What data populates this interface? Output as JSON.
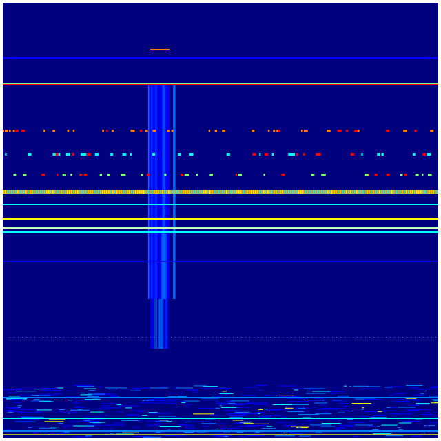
{
  "colormap": "jet",
  "colors": {
    "background": "#00007f",
    "blue": "#0000ff",
    "light_blue": "#0080ff",
    "cyan": "#00ffff",
    "green": "#80ff80",
    "yellow": "#ffff00",
    "orange": "#ff8000",
    "red": "#ff0000",
    "frame": "#ffffff"
  }
}
